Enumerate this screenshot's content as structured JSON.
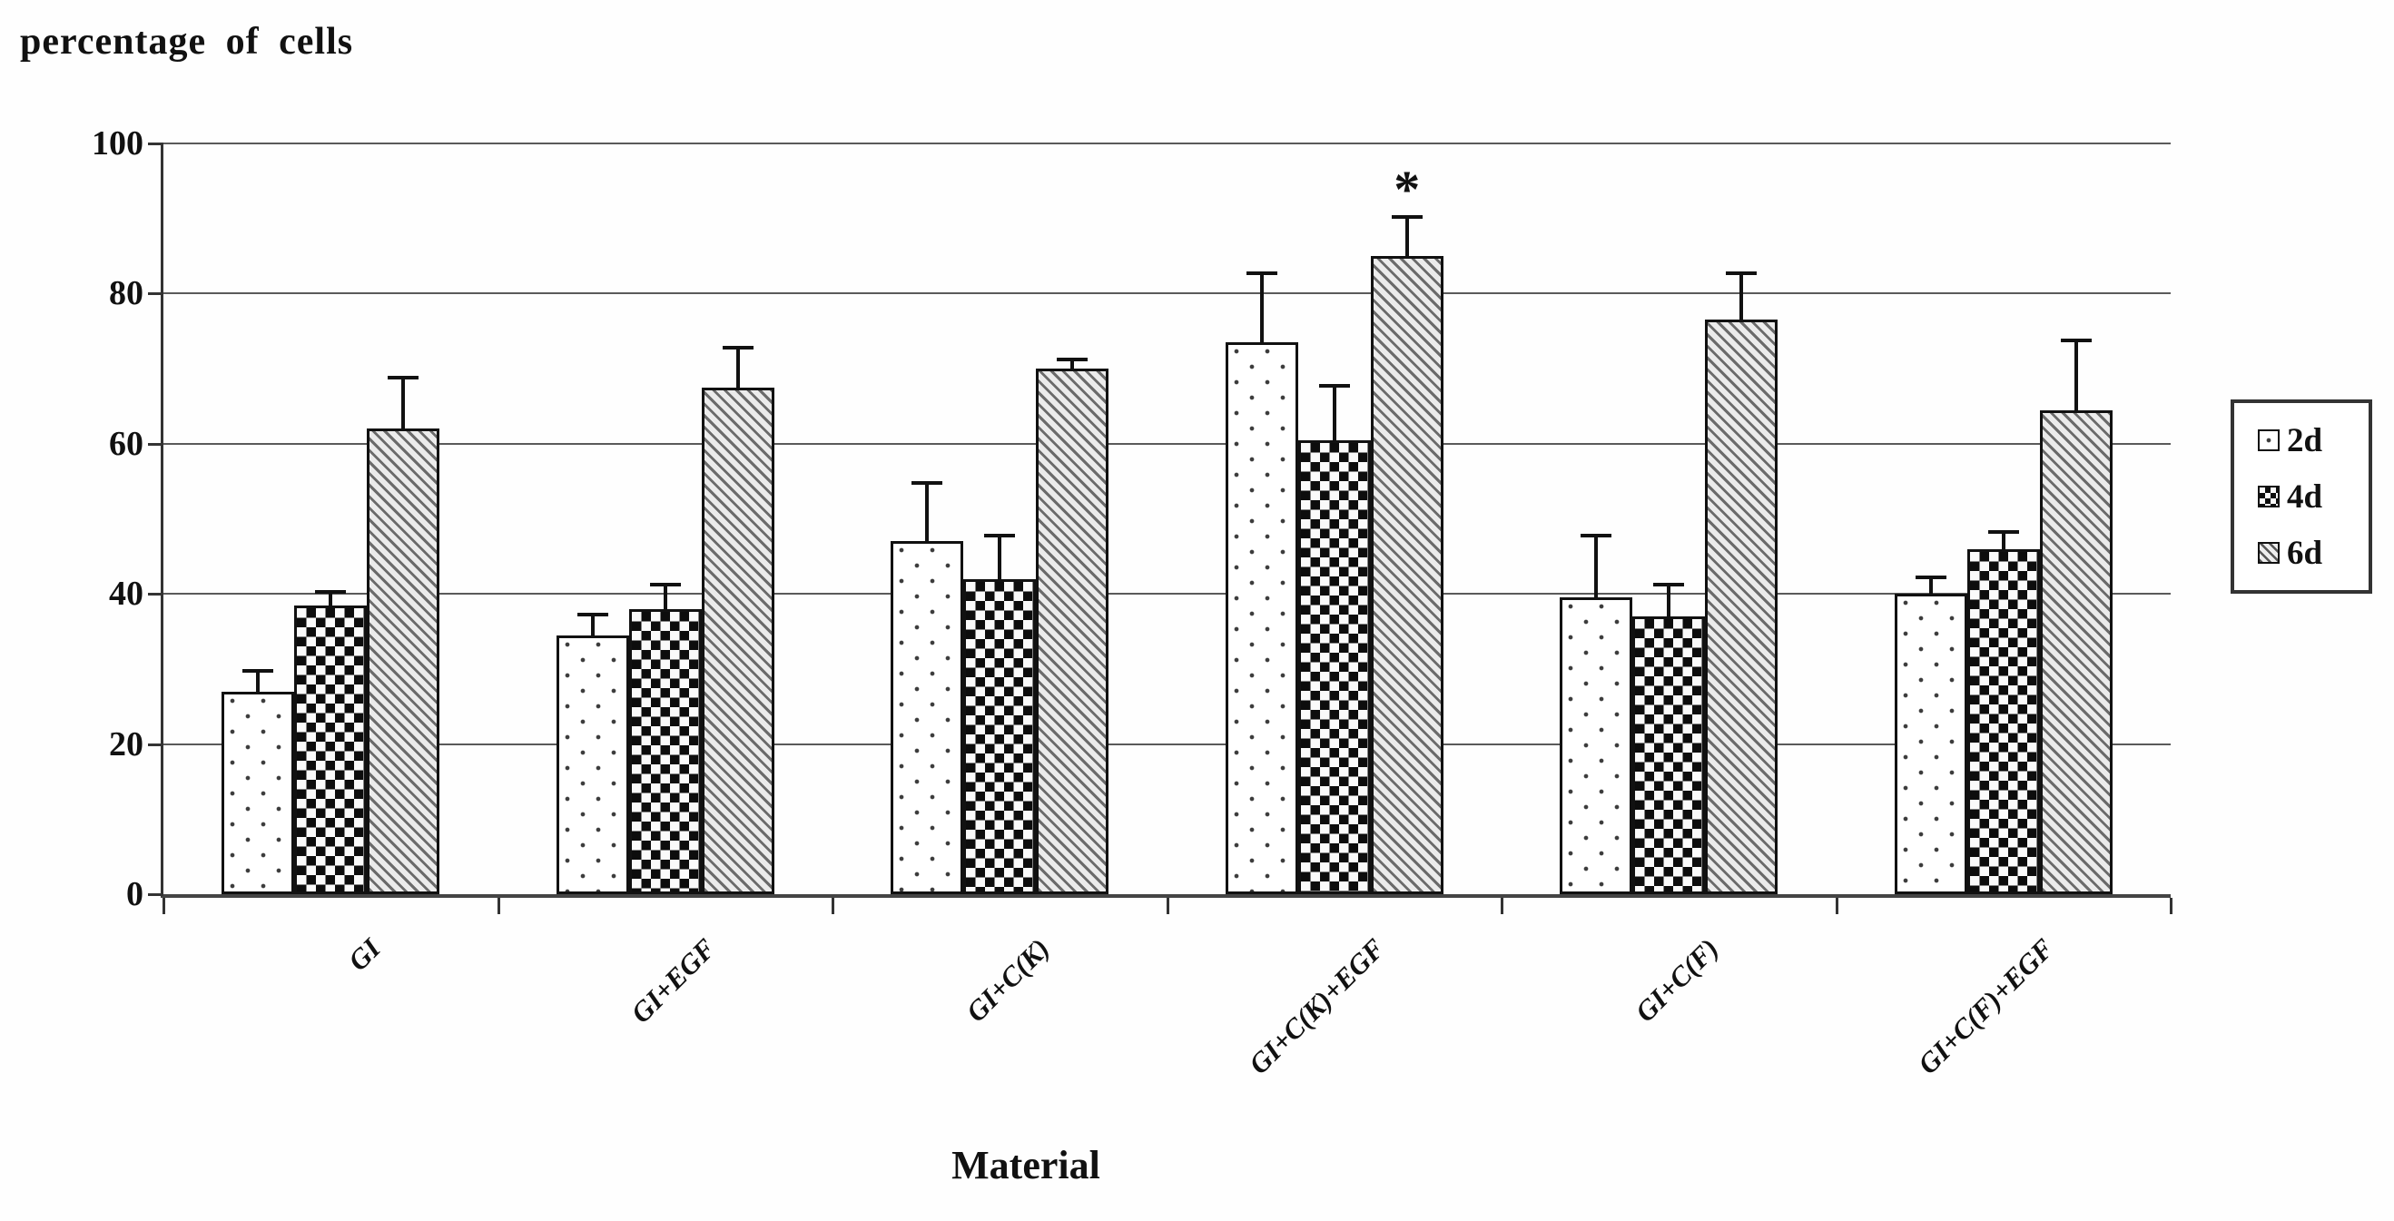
{
  "title": "percentage of cells",
  "x_axis_title": "Material",
  "y_axis": {
    "ticks": [
      100,
      80,
      60,
      40,
      20,
      0
    ],
    "min": 0,
    "max": 100
  },
  "legend": {
    "items": [
      {
        "label": "2d",
        "pattern": "dots"
      },
      {
        "label": "4d",
        "pattern": "checker"
      },
      {
        "label": "6d",
        "pattern": "diagonal"
      }
    ]
  },
  "chart_data": {
    "type": "bar",
    "title": "percentage of cells",
    "xlabel": "Material",
    "ylabel": "percentage of cells",
    "ylim": [
      0,
      100
    ],
    "grid": true,
    "gridline_step": 20,
    "legend_position": "right",
    "categories": [
      "GI",
      "GI+EGF",
      "GI+C(K)",
      "GI+C(K)+EGF",
      "GI+C(F)",
      "GI+C(F)+EGF"
    ],
    "series": [
      {
        "name": "2d",
        "pattern": "dots",
        "values": [
          27,
          34.5,
          47,
          73.5,
          39.5,
          40
        ],
        "errors": [
          3,
          3,
          8,
          9.5,
          8.5,
          2.5
        ]
      },
      {
        "name": "4d",
        "pattern": "checker",
        "values": [
          38.5,
          38,
          42,
          60.5,
          37,
          46
        ],
        "errors": [
          2,
          3.5,
          6,
          7.5,
          4.5,
          2.5
        ]
      },
      {
        "name": "6d",
        "pattern": "diagonal",
        "values": [
          62,
          67.5,
          70,
          85,
          76.5,
          64.5
        ],
        "errors": [
          7,
          5.5,
          1.5,
          5.5,
          6.5,
          9.5
        ]
      }
    ],
    "annotations": [
      {
        "text": "*",
        "category": "GI+C(K)+EGF",
        "series": "6d",
        "meaning": "statistical significance"
      }
    ]
  }
}
